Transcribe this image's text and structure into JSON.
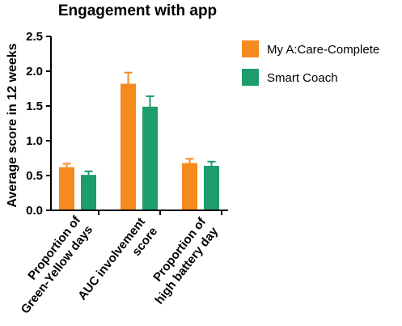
{
  "chart_data": {
    "type": "bar",
    "title": "Engagement with app",
    "ylabel": "Average score in 12 weeks",
    "xlabel": "",
    "ylim": [
      0,
      2.5
    ],
    "yticks": [
      "0.0",
      "0.5",
      "1.0",
      "1.5",
      "2.0",
      "2.5"
    ],
    "categories": [
      [
        "Proportion of",
        "Green-Yellow days"
      ],
      [
        "AUC involvement",
        "score"
      ],
      [
        "Proportion of",
        "high battery day"
      ]
    ],
    "series": [
      {
        "name": "My A:Care-Complete",
        "color": "#f58a1f",
        "values": [
          0.62,
          1.82,
          0.68
        ],
        "errors": [
          0.05,
          0.16,
          0.06
        ]
      },
      {
        "name": "Smart Coach",
        "color": "#1e9c6b",
        "values": [
          0.51,
          1.49,
          0.64
        ],
        "errors": [
          0.05,
          0.15,
          0.06
        ]
      }
    ],
    "error_bars": true,
    "grid": false,
    "legend": "top-right"
  }
}
